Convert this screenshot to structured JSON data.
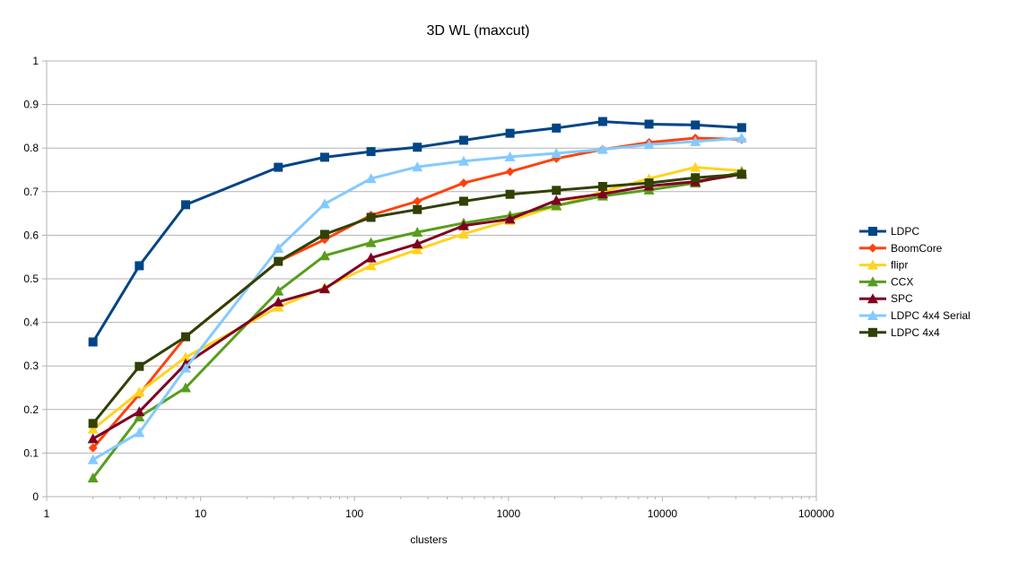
{
  "chart_data": {
    "type": "line",
    "title": "3D WL (maxcut)",
    "xlabel": "clusters",
    "ylabel": "",
    "x_scale": "log",
    "xlim": [
      1,
      100000
    ],
    "ylim": [
      0,
      1
    ],
    "grid": true,
    "legend_position": "right",
    "x_tick_labels": [
      "1",
      "10",
      "100",
      "1000",
      "10000",
      "100000"
    ],
    "y_tick_labels": [
      "0",
      "0.1",
      "0.2",
      "0.3",
      "0.4",
      "0.5",
      "0.6",
      "0.7",
      "0.8",
      "0.9",
      "1"
    ],
    "x": [
      2,
      4,
      8,
      32,
      64,
      128,
      256,
      512,
      1024,
      2048,
      4096,
      8192,
      16384,
      32768
    ],
    "series": [
      {
        "name": "LDPC",
        "color": "#004586",
        "marker": "square",
        "values": [
          0.355,
          0.53,
          0.67,
          0.756,
          0.779,
          0.792,
          0.802,
          0.818,
          0.834,
          0.846,
          0.861,
          0.855,
          0.853,
          0.847
        ]
      },
      {
        "name": "BoomCore",
        "color": "#ff420e",
        "marker": "diamond",
        "values": [
          0.112,
          0.235,
          0.367,
          0.54,
          0.59,
          0.646,
          0.678,
          0.72,
          0.746,
          0.776,
          0.797,
          0.813,
          0.823,
          0.82
        ]
      },
      {
        "name": "flipr",
        "color": "#ffd320",
        "marker": "triangle",
        "values": [
          0.155,
          0.24,
          0.32,
          0.435,
          0.48,
          0.53,
          0.567,
          0.603,
          0.634,
          0.667,
          0.7,
          0.73,
          0.756,
          0.748
        ]
      },
      {
        "name": "CCX",
        "color": "#579d1c",
        "marker": "triangle",
        "values": [
          0.043,
          0.183,
          0.25,
          0.472,
          0.553,
          0.583,
          0.607,
          0.628,
          0.645,
          0.668,
          0.69,
          0.704,
          0.72,
          0.745
        ]
      },
      {
        "name": "SPC",
        "color": "#7e0021",
        "marker": "triangle",
        "values": [
          0.133,
          0.195,
          0.305,
          0.447,
          0.477,
          0.548,
          0.58,
          0.622,
          0.637,
          0.68,
          0.695,
          0.713,
          0.723,
          0.74
        ]
      },
      {
        "name": "LDPC 4x4 Serial",
        "color": "#83caff",
        "marker": "triangle",
        "values": [
          0.085,
          0.147,
          0.295,
          0.57,
          0.672,
          0.73,
          0.757,
          0.77,
          0.78,
          0.788,
          0.797,
          0.808,
          0.815,
          0.823
        ]
      },
      {
        "name": "LDPC 4x4",
        "color": "#314004",
        "marker": "square",
        "values": [
          0.168,
          0.299,
          0.367,
          0.54,
          0.602,
          0.641,
          0.659,
          0.678,
          0.694,
          0.703,
          0.712,
          0.72,
          0.732,
          0.74
        ]
      }
    ]
  }
}
